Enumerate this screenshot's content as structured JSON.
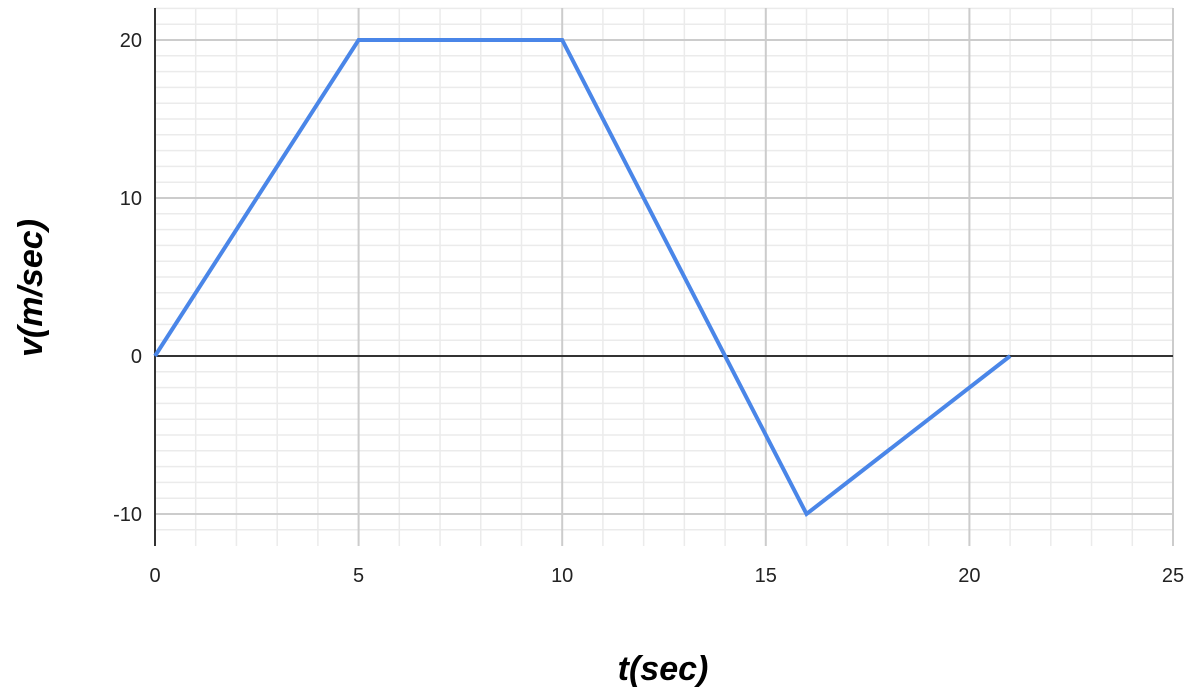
{
  "chart_data": {
    "type": "line",
    "xlabel": "t(sec)",
    "ylabel": "v(m/sec)",
    "xlim": [
      0,
      25
    ],
    "ylim": [
      -11.5,
      22
    ],
    "x_ticks": [
      0,
      5,
      10,
      15,
      20,
      25
    ],
    "y_ticks": [
      -10,
      0,
      10,
      20
    ],
    "x_tick_labels": [
      "0",
      "5",
      "10",
      "15",
      "20",
      "25"
    ],
    "y_tick_labels": [
      "-10",
      "0",
      "10",
      "20"
    ],
    "grid": true,
    "legend": "none",
    "series": [
      {
        "color": "#4A86E8",
        "x": [
          0,
          5,
          10,
          16,
          21
        ],
        "y": [
          0,
          20,
          20,
          -10,
          0
        ]
      }
    ]
  }
}
